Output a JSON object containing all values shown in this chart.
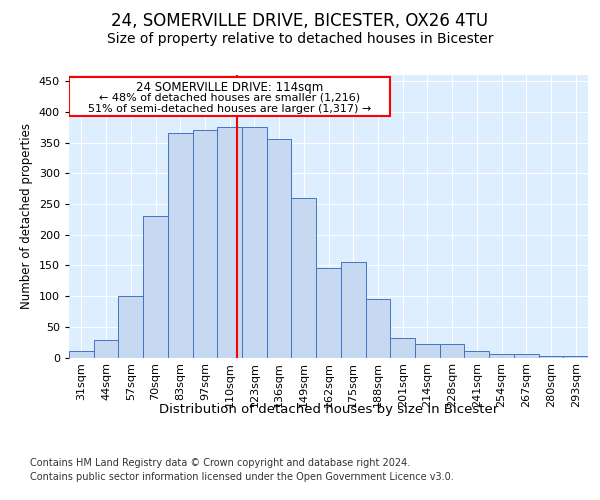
{
  "title1": "24, SOMERVILLE DRIVE, BICESTER, OX26 4TU",
  "title2": "Size of property relative to detached houses in Bicester",
  "xlabel": "Distribution of detached houses by size in Bicester",
  "ylabel": "Number of detached properties",
  "categories": [
    "31sqm",
    "44sqm",
    "57sqm",
    "70sqm",
    "83sqm",
    "97sqm",
    "110sqm",
    "123sqm",
    "136sqm",
    "149sqm",
    "162sqm",
    "175sqm",
    "188sqm",
    "201sqm",
    "214sqm",
    "228sqm",
    "241sqm",
    "254sqm",
    "267sqm",
    "280sqm",
    "293sqm"
  ],
  "values": [
    10,
    28,
    100,
    230,
    365,
    370,
    375,
    375,
    355,
    260,
    145,
    155,
    95,
    32,
    22,
    22,
    10,
    5,
    5,
    2,
    3
  ],
  "bar_color": "#c6d9f0",
  "bar_edge_color": "#4472c4",
  "red_line_index": 6.31,
  "annotation_title": "24 SOMERVILLE DRIVE: 114sqm",
  "annotation_line1": "← 48% of detached houses are smaller (1,216)",
  "annotation_line2": "51% of semi-detached houses are larger (1,317) →",
  "ylim": [
    0,
    460
  ],
  "yticks": [
    0,
    50,
    100,
    150,
    200,
    250,
    300,
    350,
    400,
    450
  ],
  "bg_color": "#ddeeff",
  "footer1": "Contains HM Land Registry data © Crown copyright and database right 2024.",
  "footer2": "Contains public sector information licensed under the Open Government Licence v3.0.",
  "title1_fontsize": 12,
  "title2_fontsize": 10,
  "xlabel_fontsize": 9.5,
  "ylabel_fontsize": 8.5,
  "tick_fontsize": 8,
  "footer_fontsize": 7
}
